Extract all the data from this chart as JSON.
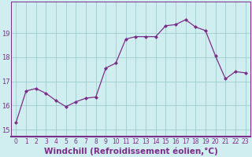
{
  "x": [
    0,
    1,
    2,
    3,
    4,
    5,
    6,
    7,
    8,
    9,
    10,
    11,
    12,
    13,
    14,
    15,
    16,
    17,
    18,
    19,
    20,
    21,
    22,
    23
  ],
  "y": [
    15.3,
    16.6,
    16.7,
    16.5,
    16.2,
    15.95,
    16.15,
    16.3,
    16.35,
    17.55,
    17.75,
    18.75,
    18.85,
    18.85,
    18.85,
    19.3,
    19.35,
    19.55,
    19.25,
    19.1,
    18.05,
    17.1,
    17.4,
    17.35
  ],
  "line_color": "#7b2d8b",
  "marker": "D",
  "markersize": 2.0,
  "linewidth": 0.9,
  "bg_color": "#d0eef0",
  "grid_color": "#a0cdd0",
  "xlabel": "Windchill (Refroidissement éolien,°C)",
  "ylabel": "",
  "xlim": [
    -0.5,
    23.5
  ],
  "ylim": [
    14.7,
    20.3
  ],
  "yticks": [
    15,
    16,
    17,
    18,
    19
  ],
  "xticks": [
    0,
    1,
    2,
    3,
    4,
    5,
    6,
    7,
    8,
    9,
    10,
    11,
    12,
    13,
    14,
    15,
    16,
    17,
    18,
    19,
    20,
    21,
    22,
    23
  ],
  "tick_color": "#7b2d8b",
  "tick_fontsize": 5.5,
  "xlabel_fontsize": 7.5
}
